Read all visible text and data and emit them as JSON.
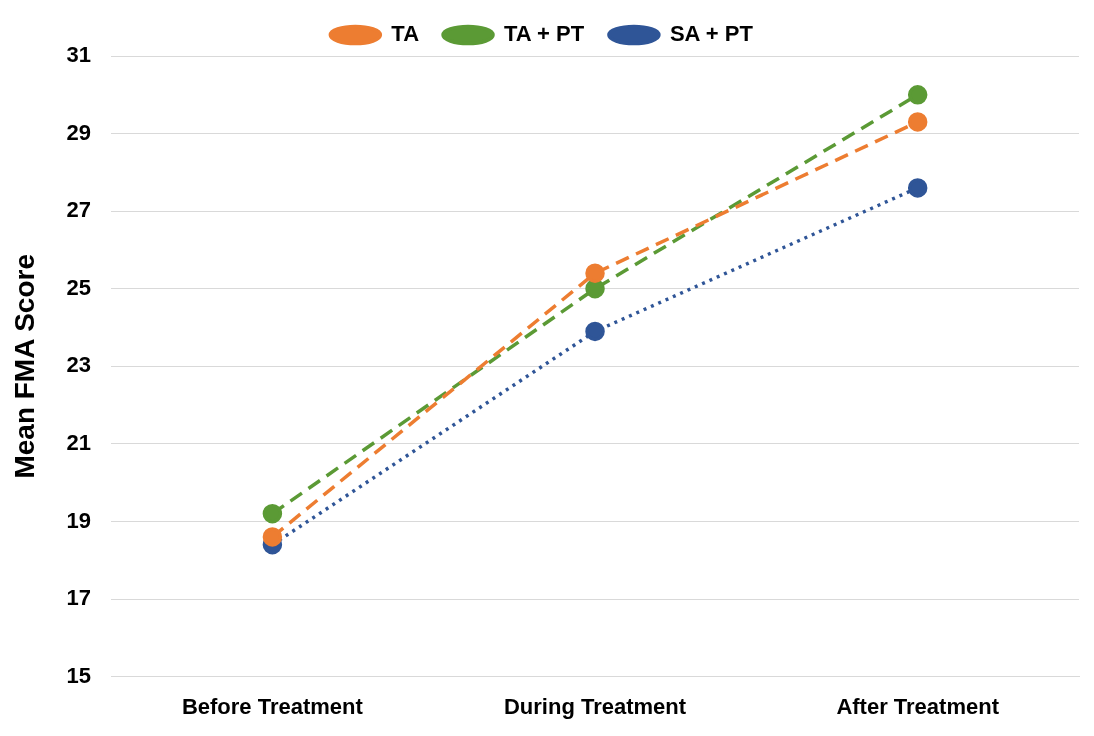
{
  "chart_data": {
    "type": "line",
    "ylabel": "Mean FMA Score",
    "categories": [
      "Before Treatment",
      "During Treatment",
      "After Treatment"
    ],
    "series": [
      {
        "name": "TA",
        "color": "#ed7d31",
        "values": [
          18.6,
          25.4,
          29.3
        ],
        "line_style": "dashed"
      },
      {
        "name": "TA + PT",
        "color": "#5b9a35",
        "values": [
          19.2,
          25.0,
          30.0
        ],
        "line_style": "dashed"
      },
      {
        "name": "SA + PT",
        "color": "#2f5597",
        "values": [
          18.4,
          23.9,
          27.6
        ],
        "line_style": "dotted"
      }
    ],
    "ylim": [
      15,
      31
    ],
    "yticks": [
      15,
      17,
      19,
      21,
      23,
      25,
      27,
      29,
      31
    ],
    "grid": "y",
    "legend": "top",
    "marker": "circle"
  }
}
